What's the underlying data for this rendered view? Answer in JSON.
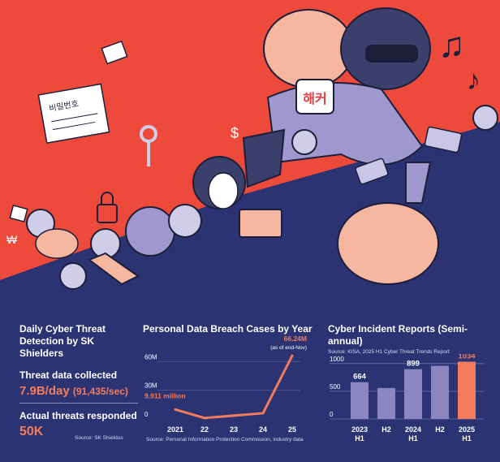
{
  "illustration": {
    "armband_text": "해커",
    "note_text": "비밀번호"
  },
  "detection_panel": {
    "title": "Daily Cyber Threat Detection by SK Shielders",
    "metric1_label": "Threat data collected",
    "metric1_value": "7.9B/day",
    "metric1_sub": "(91,435/sec)",
    "metric2_label": "Actual threats responded",
    "metric2_value": "50K",
    "source": "Source: SK Shieldus"
  },
  "breach_panel": {
    "source": "Source: Personal Information Protection Commission, industry data"
  },
  "incident_panel": {
    "source": "Source: KISA, 2025 H1 Cyber Threat Trends Report"
  },
  "chart_data": [
    {
      "type": "line",
      "title": "Personal Data Breach Cases by Year",
      "x": [
        "2021",
        "22",
        "23",
        "24",
        "25"
      ],
      "values": [
        9.911,
        1,
        3.5,
        6,
        66.24
      ],
      "yticks": [
        "0",
        "30M",
        "60M"
      ],
      "ylim": [
        0,
        66.24
      ],
      "annotations": [
        "9.911 million",
        "66.24M",
        "(as of end-Nov)"
      ],
      "color": "#f47c5c"
    },
    {
      "type": "bar",
      "title": "Cyber Incident Reports (Semi-annual)",
      "categories": [
        "2023 H1",
        "H2",
        "2024 H1",
        "H2",
        "2025 H1"
      ],
      "category_lines": [
        [
          "2023",
          "H1"
        ],
        [
          "H2",
          ""
        ],
        [
          "2024",
          "H1"
        ],
        [
          "H2",
          ""
        ],
        [
          "2025",
          "H1"
        ]
      ],
      "values": [
        664,
        560,
        899,
        960,
        1034
      ],
      "data_labels": [
        "664",
        "",
        "899",
        "",
        "1034"
      ],
      "yticks": [
        "0",
        "500",
        "1000"
      ],
      "ylim": [
        0,
        1100
      ],
      "colors": {
        "bar": "#8b86c0",
        "highlight": "#f47c5c"
      }
    }
  ]
}
